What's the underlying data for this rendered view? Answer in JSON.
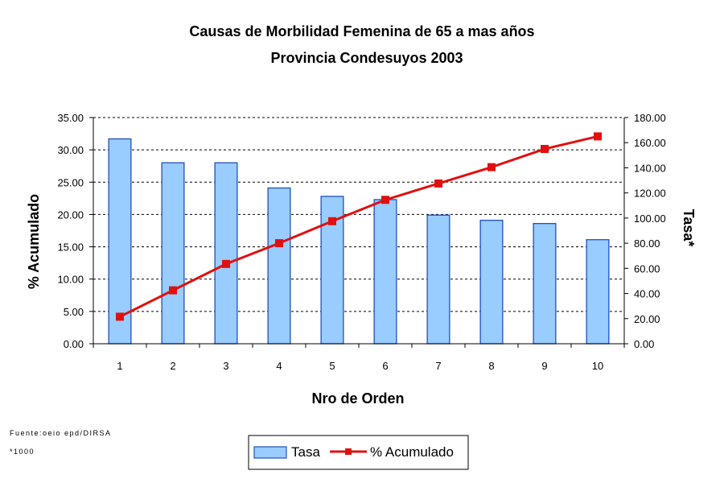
{
  "chart_data": {
    "type": "bar+line",
    "title": "Causas de Morbilidad Femenina de 65 a mas años",
    "subtitle": "Provincia Condesuyos 2003",
    "xlabel": "Nro de Orden",
    "ylabel_left": "% Acumulado",
    "ylabel_right": "Tasa*",
    "categories": [
      "1",
      "2",
      "3",
      "4",
      "5",
      "6",
      "7",
      "8",
      "9",
      "10"
    ],
    "y_left_ticks": [
      "0.00",
      "5.00",
      "10.00",
      "15.00",
      "20.00",
      "25.00",
      "30.00",
      "35.00"
    ],
    "y_right_ticks": [
      "0.00",
      "20.00",
      "40.00",
      "60.00",
      "80.00",
      "100.00",
      "120.00",
      "140.00",
      "160.00",
      "180.00"
    ],
    "ylim_left": [
      0,
      35
    ],
    "ylim_right": [
      0,
      180
    ],
    "grid": true,
    "series": [
      {
        "name": "Tasa",
        "kind": "bar",
        "axis": "left",
        "color": "#99ccff",
        "values": [
          31.7,
          28.0,
          28.0,
          24.1,
          22.8,
          22.3,
          19.9,
          19.1,
          18.6,
          16.1
        ]
      },
      {
        "name": "% Acumulado",
        "kind": "line",
        "axis": "right",
        "color": "#e01010",
        "values": [
          21.5,
          42.5,
          63.5,
          80.0,
          97.5,
          114.5,
          127.5,
          140.5,
          155.0,
          165.0
        ]
      }
    ],
    "legend_position": "bottom",
    "notes": [
      "Fuente:oeio epd/DIRSA",
      "*1000"
    ]
  }
}
